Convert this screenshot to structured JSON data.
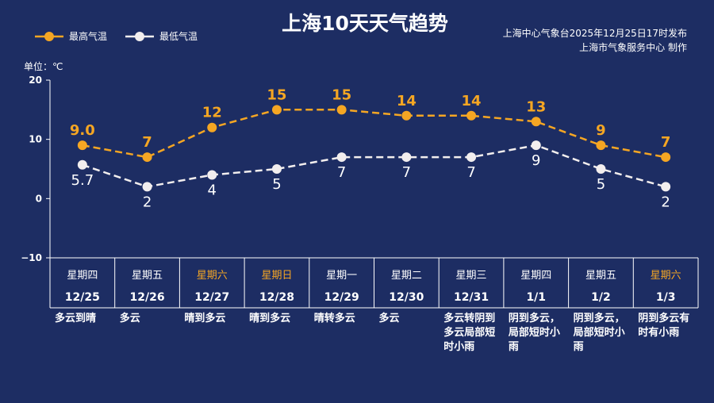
{
  "header": {
    "title": "上海10天天气趋势",
    "publisher_line1": "上海中心气象台2025年12月25日17时发布",
    "publisher_line2": "上海市气象服务中心  制作"
  },
  "colors": {
    "background": "#1d2d63",
    "high": "#f5a623",
    "low": "#f2eeee",
    "text": "#ffffff"
  },
  "chart_data": {
    "type": "line",
    "title": "上海10天天气趋势",
    "unit_label": "单位：℃",
    "ylim": [
      -10,
      20
    ],
    "yticks": [
      "20",
      "10",
      "0",
      "−10"
    ],
    "ytick_values": [
      20,
      10,
      0,
      -10
    ],
    "legend_position": "top-left",
    "x": [
      "12/25",
      "12/26",
      "12/27",
      "12/28",
      "12/29",
      "12/30",
      "12/31",
      "1/1",
      "1/2",
      "1/3"
    ],
    "weekdays": [
      "星期四",
      "星期五",
      "星期六",
      "星期日",
      "星期一",
      "星期二",
      "星期三",
      "星期四",
      "星期五",
      "星期六"
    ],
    "weekend": [
      false,
      false,
      true,
      true,
      false,
      false,
      false,
      false,
      false,
      true
    ],
    "conditions": [
      [
        "多云到晴"
      ],
      [
        "多云"
      ],
      [
        "晴到多云"
      ],
      [
        "晴到多云"
      ],
      [
        "晴转多云"
      ],
      [
        "多云"
      ],
      [
        "多云转阴到",
        "多云局部短",
        "时小雨"
      ],
      [
        "阴到多云，",
        "局部短时小",
        "雨"
      ],
      [
        "阴到多云，",
        "局部短时小",
        "雨"
      ],
      [
        "阴到多云有",
        "时有小雨"
      ]
    ],
    "series": [
      {
        "name": "最高气温",
        "values": [
          9.0,
          7,
          12,
          15,
          15,
          14,
          14,
          13,
          9,
          7
        ],
        "labels": [
          "9.0",
          "7",
          "12",
          "15",
          "15",
          "14",
          "14",
          "13",
          "9",
          "7"
        ]
      },
      {
        "name": "最低气温",
        "values": [
          5.7,
          2,
          4,
          5,
          7,
          7,
          7,
          9,
          5,
          2
        ],
        "labels": [
          "5.7",
          "2",
          "4",
          "5",
          "7",
          "7",
          "7",
          "9",
          "5",
          "2"
        ]
      }
    ]
  }
}
